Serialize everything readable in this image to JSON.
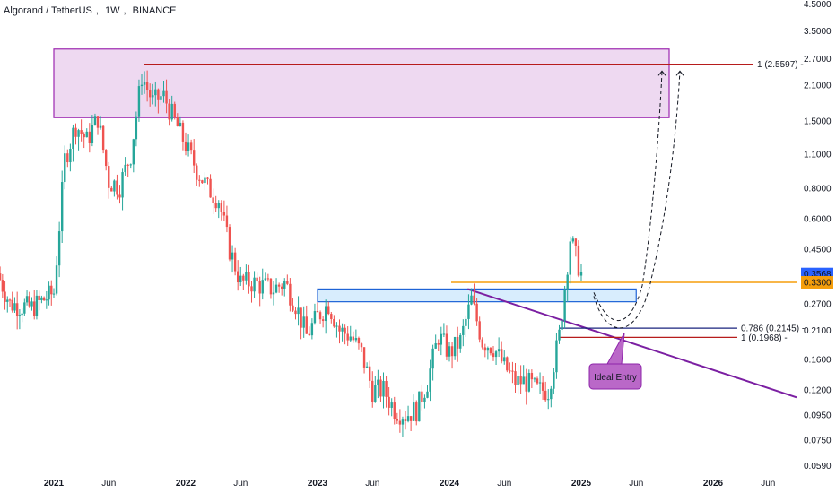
{
  "header": {
    "symbol": "Algorand / TetherUS",
    "interval": "1W",
    "exchange": "BINANCE"
  },
  "colors": {
    "up": "#26a69a",
    "down": "#ef5350",
    "current_price_bg": "#2962ff",
    "horizontal_level": "#f59e0b",
    "fib_line": "#1a237e",
    "fib_one_line": "#b71c1c",
    "trendline": "#7b1fa2",
    "resistance_zone": "#ce93d8",
    "support_zone": "#90caf9",
    "label_bg": "#ba68c8"
  },
  "chart_data": {
    "type": "candlestick",
    "y_scale": "log",
    "y_ticks": [
      "4.5000",
      "3.5000",
      "2.7000",
      "2.1000",
      "1.5000",
      "1.1000",
      "0.8000",
      "0.6000",
      "0.4500",
      "0.3300",
      "0.2700",
      "0.2100",
      "0.1600",
      "0.1200",
      "0.0950",
      "0.0750",
      "0.0590"
    ],
    "x_ticks": [
      "2021",
      "Jun",
      "2022",
      "Jun",
      "2023",
      "Jun",
      "2024",
      "Jun",
      "2025",
      "Jun",
      "2026",
      "Jun"
    ],
    "current_price": "0.3568",
    "level_price": "0.3300",
    "fib_labels": [
      {
        "text": "1 (2.5597)",
        "price": 2.5597
      },
      {
        "text": "0.786 (0.2145)",
        "price": 0.2145
      },
      {
        "text": "1 (0.1968)",
        "price": 0.1968
      }
    ],
    "annotation": "Ideal Entry",
    "zones": [
      {
        "name": "resistance",
        "from": "2021-01",
        "to": "2025-09",
        "low": 1.55,
        "high": 2.95
      },
      {
        "name": "support",
        "from": "2023-01",
        "to": "2025-06",
        "low": 0.275,
        "high": 0.31
      }
    ],
    "price_path": [
      {
        "t": "2020-07",
        "p": 0.45
      },
      {
        "t": "2020-09",
        "p": 0.27
      },
      {
        "t": "2020-11",
        "p": 0.26
      },
      {
        "t": "2021-01",
        "p": 0.3
      },
      {
        "t": "2021-02",
        "p": 1.05
      },
      {
        "t": "2021-03",
        "p": 1.45
      },
      {
        "t": "2021-04",
        "p": 1.25
      },
      {
        "t": "2021-05",
        "p": 1.55
      },
      {
        "t": "2021-06",
        "p": 0.85
      },
      {
        "t": "2021-07",
        "p": 0.82
      },
      {
        "t": "2021-08",
        "p": 1.1
      },
      {
        "t": "2021-09",
        "p": 2.3
      },
      {
        "t": "2021-10",
        "p": 1.8
      },
      {
        "t": "2021-11",
        "p": 1.9
      },
      {
        "t": "2021-12",
        "p": 1.5
      },
      {
        "t": "2022-01",
        "p": 1.2
      },
      {
        "t": "2022-02",
        "p": 0.95
      },
      {
        "t": "2022-03",
        "p": 0.8
      },
      {
        "t": "2022-04",
        "p": 0.72
      },
      {
        "t": "2022-05",
        "p": 0.45
      },
      {
        "t": "2022-06",
        "p": 0.33
      },
      {
        "t": "2022-07",
        "p": 0.33
      },
      {
        "t": "2022-08",
        "p": 0.32
      },
      {
        "t": "2022-09",
        "p": 0.31
      },
      {
        "t": "2022-10",
        "p": 0.33
      },
      {
        "t": "2022-11",
        "p": 0.27
      },
      {
        "t": "2022-12",
        "p": 0.2
      },
      {
        "t": "2023-01",
        "p": 0.24
      },
      {
        "t": "2023-02",
        "p": 0.27
      },
      {
        "t": "2023-03",
        "p": 0.21
      },
      {
        "t": "2023-04",
        "p": 0.2
      },
      {
        "t": "2023-05",
        "p": 0.17
      },
      {
        "t": "2023-06",
        "p": 0.12
      },
      {
        "t": "2023-07",
        "p": 0.12
      },
      {
        "t": "2023-08",
        "p": 0.1
      },
      {
        "t": "2023-09",
        "p": 0.095
      },
      {
        "t": "2023-10",
        "p": 0.1
      },
      {
        "t": "2023-11",
        "p": 0.13
      },
      {
        "t": "2023-12",
        "p": 0.2
      },
      {
        "t": "2024-01",
        "p": 0.17
      },
      {
        "t": "2024-02",
        "p": 0.19
      },
      {
        "t": "2024-03",
        "p": 0.28
      },
      {
        "t": "2024-04",
        "p": 0.19
      },
      {
        "t": "2024-05",
        "p": 0.18
      },
      {
        "t": "2024-06",
        "p": 0.15
      },
      {
        "t": "2024-07",
        "p": 0.13
      },
      {
        "t": "2024-08",
        "p": 0.13
      },
      {
        "t": "2024-09",
        "p": 0.12
      },
      {
        "t": "2024-10",
        "p": 0.12
      },
      {
        "t": "2024-11",
        "p": 0.2
      },
      {
        "t": "2024-12",
        "p": 0.5
      },
      {
        "t": "2025-01",
        "p": 0.3568
      }
    ]
  }
}
